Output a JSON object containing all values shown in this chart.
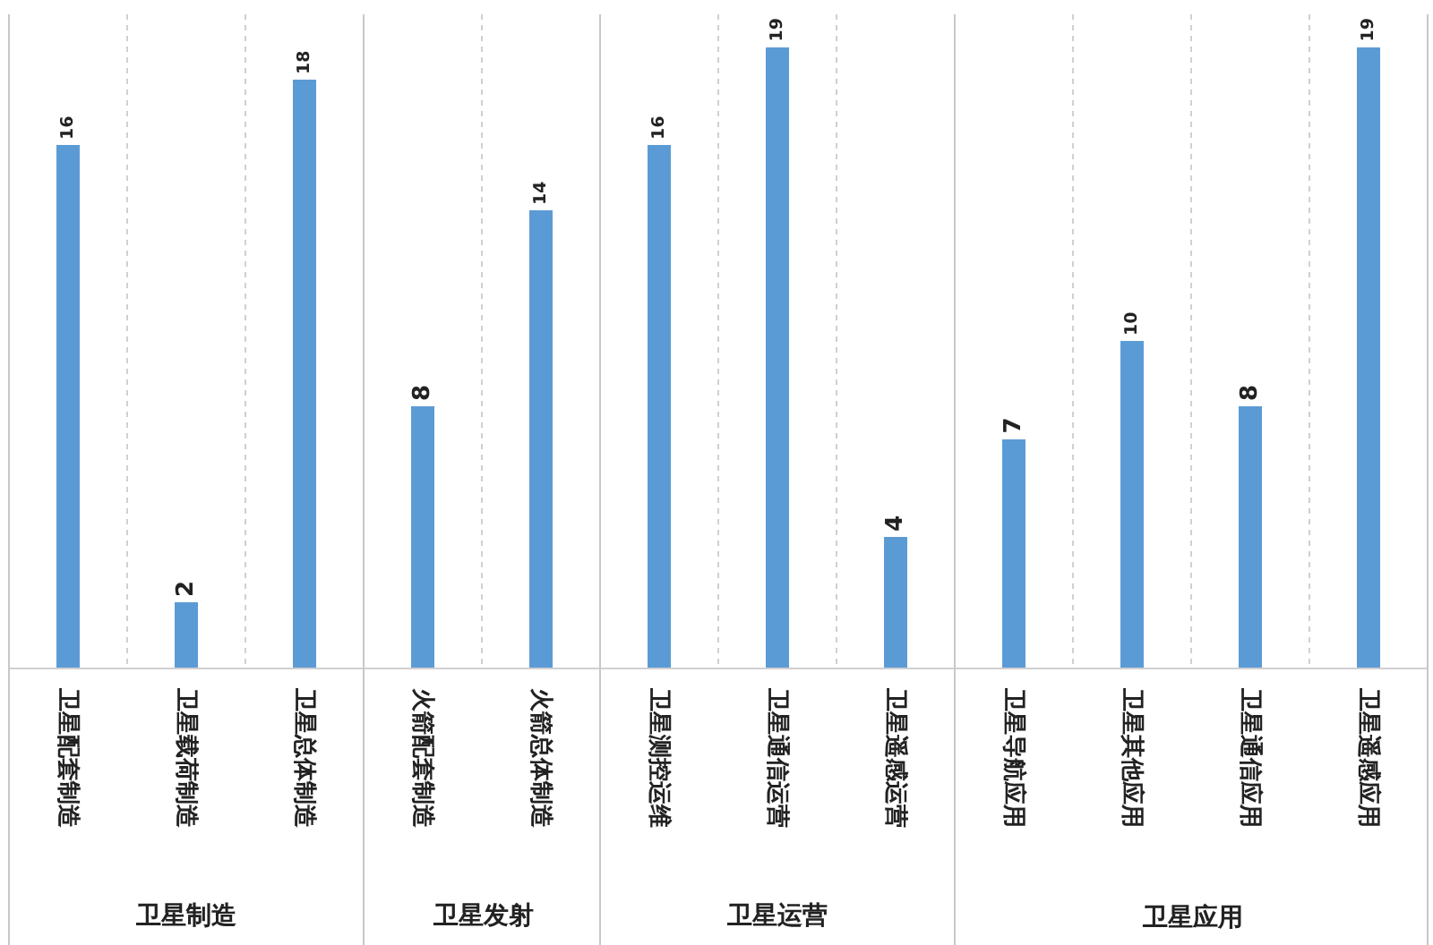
{
  "chart_data": {
    "type": "bar",
    "categories": [
      "卫星配套制造",
      "卫星载荷制造",
      "卫星总体制造",
      "火箭配套制造",
      "火箭总体制造",
      "卫星测控运维",
      "卫星通信运营",
      "卫星遥感运营",
      "卫星导航应用",
      "卫星其他应用",
      "卫星通信应用",
      "卫星遥感应用"
    ],
    "values": [
      16,
      2,
      18,
      8,
      14,
      16,
      19,
      4,
      7,
      10,
      8,
      19
    ],
    "color": "#5b9bd5",
    "ylim": [
      0,
      20
    ],
    "data_labels": true,
    "grid": "x",
    "annotations": [
      "卫星制造",
      "卫星发射",
      "卫星运营",
      "卫星应用"
    ]
  }
}
